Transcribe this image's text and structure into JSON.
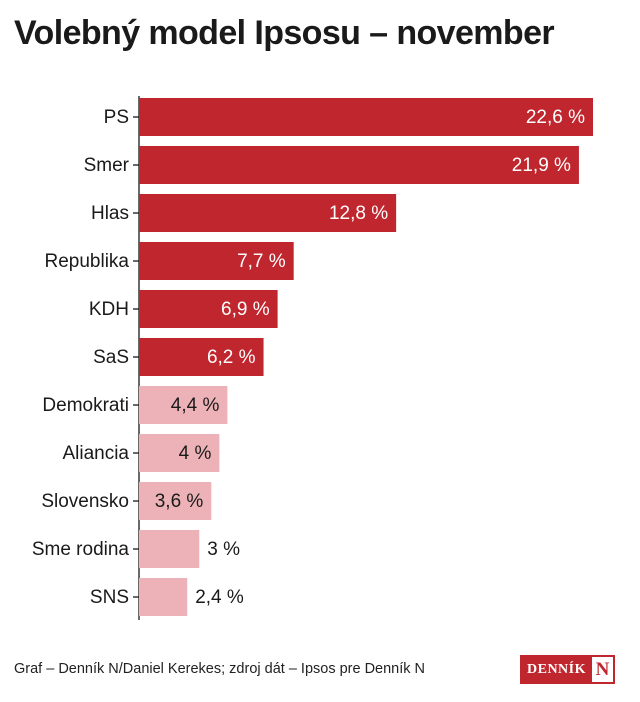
{
  "title": "Volebný model Ipsosu – november",
  "footer": "Graf – Denník N/Daniel Kerekes; zdroj dát – Ipsos pre Denník N",
  "logo": {
    "text": "DENNÍK",
    "mark": "N"
  },
  "colors": {
    "strong": "#c0262e",
    "light": "#ecb2b7",
    "label_on_bar": "#ffffff",
    "label_outside": "#1a1a1a",
    "axis": "#1a1a1a"
  },
  "chart_data": {
    "type": "bar",
    "orientation": "horizontal",
    "categories": [
      "PS",
      "Smer",
      "Hlas",
      "Republika",
      "KDH",
      "SaS",
      "Demokrati",
      "Aliancia",
      "Slovensko",
      "Sme rodina",
      "SNS"
    ],
    "values": [
      22.6,
      21.9,
      12.8,
      7.7,
      6.9,
      6.2,
      4.4,
      4,
      3.6,
      3,
      2.4
    ],
    "labels": [
      "22,6 %",
      "21,9 %",
      "12,8 %",
      "7,7 %",
      "6,9 %",
      "6,2 %",
      "4,4 %",
      "4 %",
      "3,6 %",
      "3 %",
      "2,4 %"
    ],
    "emphasis": [
      "strong",
      "strong",
      "strong",
      "strong",
      "strong",
      "strong",
      "light",
      "light",
      "light",
      "light",
      "light"
    ],
    "xlim": [
      0,
      22.6
    ],
    "grid": false
  }
}
